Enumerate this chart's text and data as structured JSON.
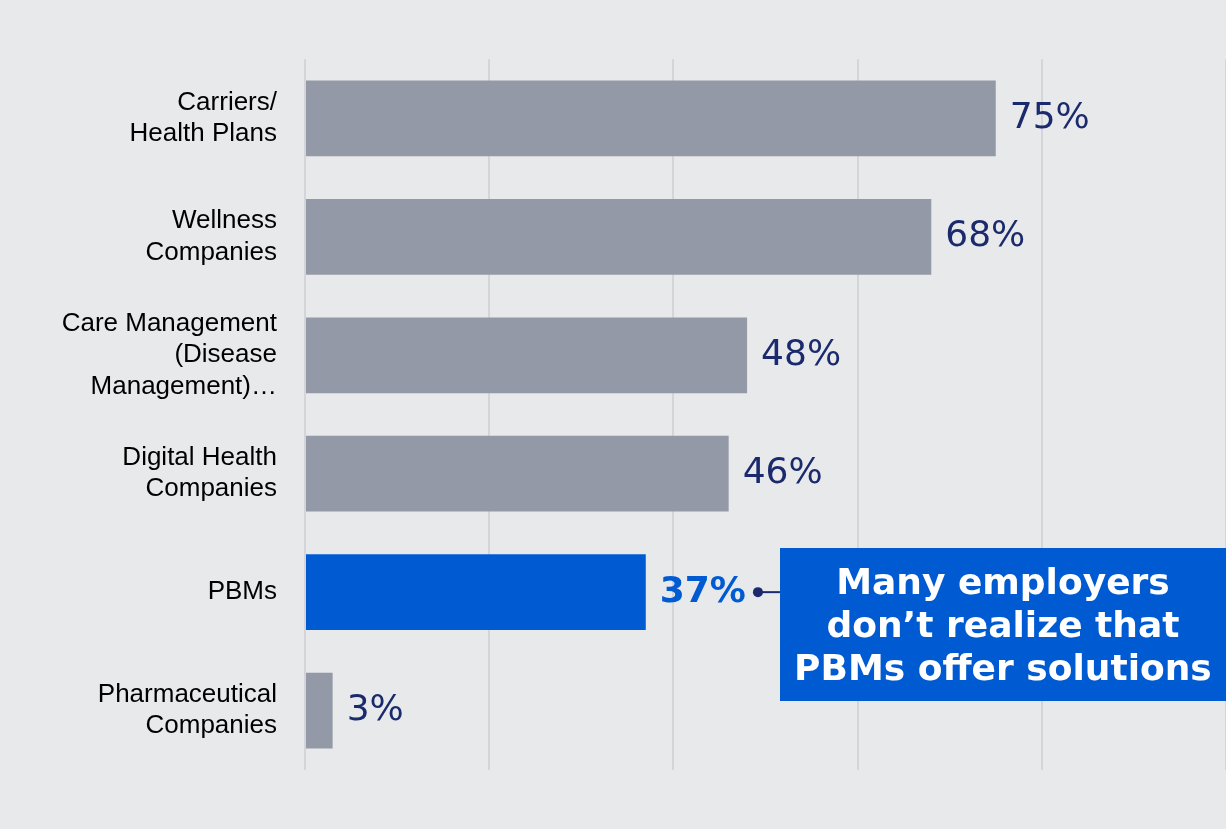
{
  "chart_data": {
    "type": "bar",
    "orientation": "horizontal",
    "categories": [
      "Carriers/\nHealth Plans",
      "Wellness\nCompanies",
      "Care Management\n(Disease\nManagement)…",
      "Digital Health\nCompanies",
      "PBMs",
      "Pharmaceutical\nCompanies"
    ],
    "values": [
      75,
      68,
      48,
      46,
      37,
      3
    ],
    "value_labels": [
      "75%",
      "68%",
      "48%",
      "46%",
      "37%",
      "3%"
    ],
    "colors": [
      "#9399a6",
      "#9399a6",
      "#9399a6",
      "#9399a6",
      "#005bd3",
      "#9399a6"
    ],
    "tick_labels": "y",
    "grid": "x",
    "legend": false,
    "annotations": [
      "Many employers don’t realize that PBMs offer solutions"
    ]
  }
}
